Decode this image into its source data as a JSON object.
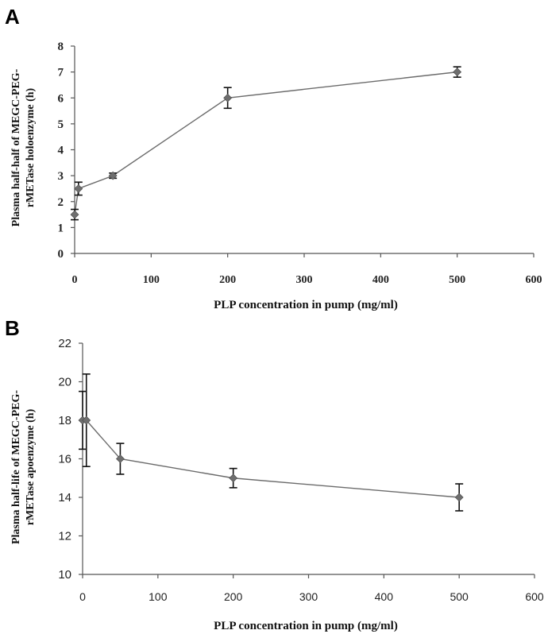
{
  "chart_data": [
    {
      "panel_label": "A",
      "type": "line",
      "title": "",
      "xlabel": "PLP concentration in pump (mg/ml)",
      "ylabel_lines": [
        "Plasma half-half of MEGC-PEG-",
        "rMETase holoenzyme (h)"
      ],
      "xlim": [
        0,
        600
      ],
      "ylim": [
        0,
        8
      ],
      "x_ticks": [
        0,
        100,
        200,
        300,
        400,
        500,
        600
      ],
      "y_ticks": [
        0,
        1,
        2,
        3,
        4,
        5,
        6,
        7,
        8
      ],
      "grid": false,
      "series": [
        {
          "x": [
            0,
            5,
            50,
            200,
            500
          ],
          "y": [
            1.5,
            2.5,
            3.0,
            6.0,
            7.0
          ],
          "err": [
            0.2,
            0.25,
            0.1,
            0.4,
            0.2
          ]
        }
      ]
    },
    {
      "panel_label": "B",
      "type": "line",
      "title": "",
      "xlabel": "PLP concentration in pump (mg/ml)",
      "ylabel_lines": [
        "Plasma half-life of MEGC-PEG-",
        "rMETase  apoenzyme (h)"
      ],
      "xlim": [
        0,
        600
      ],
      "ylim": [
        10,
        22
      ],
      "x_ticks": [
        0,
        100,
        200,
        300,
        400,
        500,
        600
      ],
      "y_ticks": [
        10,
        12,
        14,
        16,
        18,
        20,
        22
      ],
      "grid": false,
      "series": [
        {
          "x": [
            0,
            5,
            50,
            200,
            500
          ],
          "y": [
            18.0,
            18.0,
            16.0,
            15.0,
            14.0
          ],
          "err": [
            1.5,
            2.4,
            0.8,
            0.5,
            0.7
          ]
        }
      ]
    }
  ]
}
